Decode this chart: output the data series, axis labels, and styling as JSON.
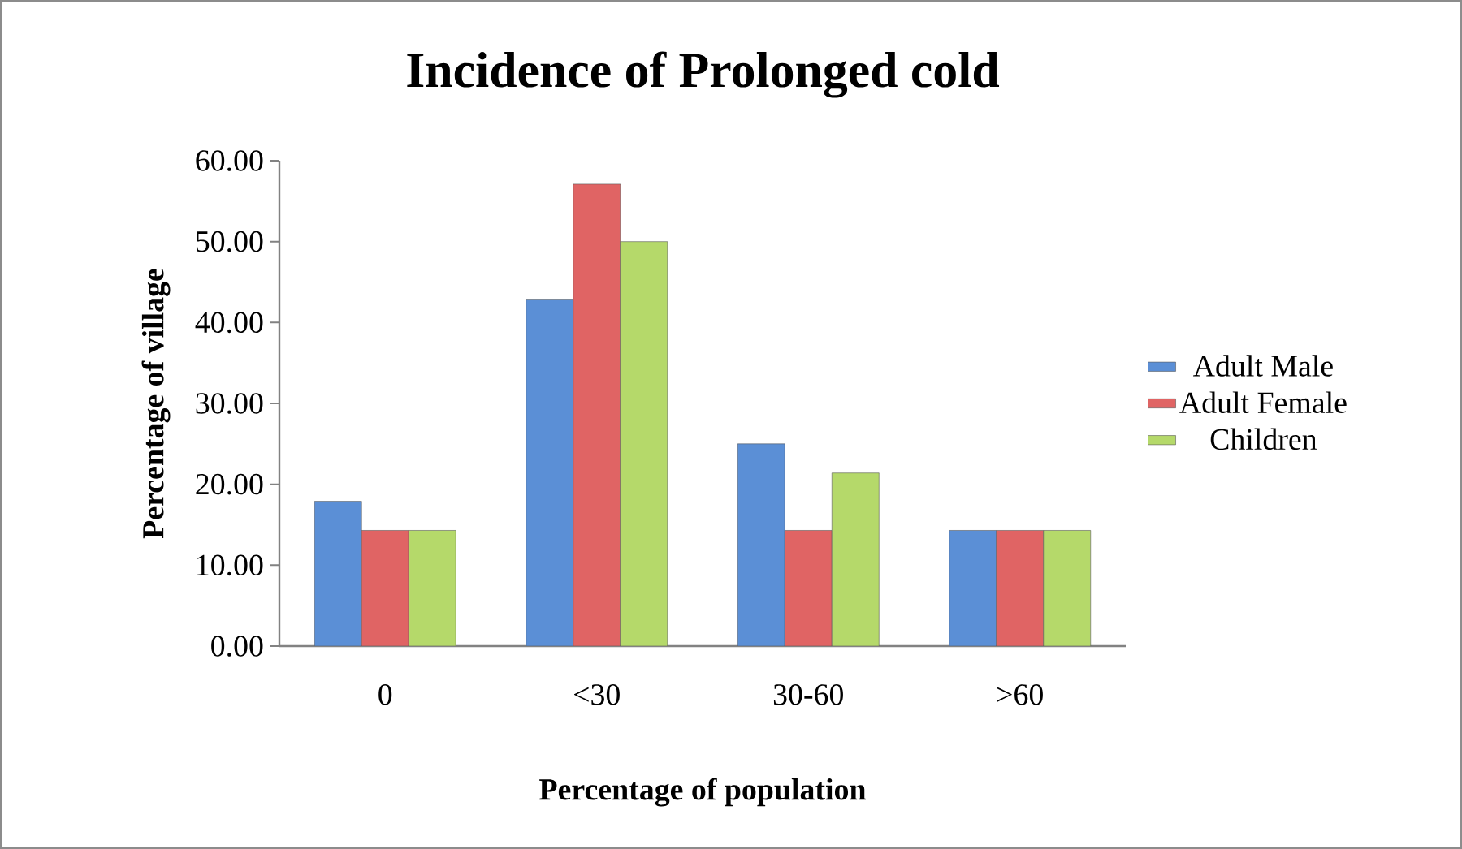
{
  "chart_data": {
    "type": "bar",
    "title": "Incidence of Prolonged cold",
    "xlabel": "Percentage of population",
    "ylabel": "Percentage of village",
    "categories": [
      "0",
      "<30",
      "30-60",
      ">60"
    ],
    "series": [
      {
        "name": "Adult Male",
        "color": "#5b8fd6",
        "values": [
          17.9,
          42.9,
          25.0,
          14.3
        ]
      },
      {
        "name": "Adult Female",
        "color": "#e06464",
        "values": [
          14.3,
          57.1,
          14.3,
          14.3
        ]
      },
      {
        "name": "Children",
        "color": "#b5d96a",
        "values": [
          14.3,
          50.0,
          21.4,
          14.3
        ]
      }
    ],
    "ylim": [
      0,
      60
    ],
    "yticks": [
      {
        "value": 0,
        "label": "0.00"
      },
      {
        "value": 10,
        "label": "10.00"
      },
      {
        "value": 20,
        "label": "20.00"
      },
      {
        "value": 30,
        "label": "30.00"
      },
      {
        "value": 40,
        "label": "40.00"
      },
      {
        "value": 50,
        "label": "50.00"
      },
      {
        "value": 60,
        "label": "60.00"
      }
    ],
    "legend": "right"
  }
}
